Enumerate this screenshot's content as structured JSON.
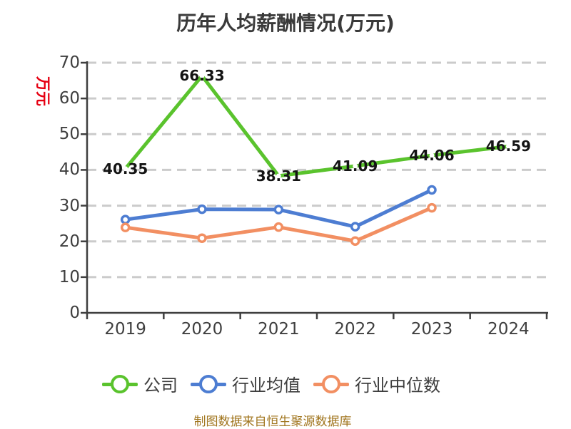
{
  "title": "历年人均薪酬情况(万元)",
  "y_axis_unit": "万元",
  "footer_note": "制图数据来自恒生聚源数据库",
  "colors": {
    "company_green": "#5ac32d",
    "industry_avg_blue": "#4d7dd2",
    "industry_median_orange": "#f28f62",
    "axis": "#3f3f3f",
    "grid": "#cbcbcb",
    "title_text": "#3a3a3a",
    "tick_text": "#3f3f3f",
    "point_label_text": "#141414",
    "y_unit_red": "#e60012",
    "footer_text": "#a1761f"
  },
  "chart_data": {
    "type": "line",
    "title": "历年人均薪酬情况(万元)",
    "categories": [
      "2019",
      "2020",
      "2021",
      "2022",
      "2023",
      "2024"
    ],
    "y_ticks": [
      0,
      10,
      20,
      30,
      40,
      50,
      60,
      70
    ],
    "ylim": [
      0,
      70
    ],
    "grid": "horizontal dashed",
    "legend_position": "bottom",
    "series": [
      {
        "key": "company",
        "name": "公司",
        "color": "#5ac32d",
        "marker": "dot",
        "values": [
          40.35,
          66.33,
          38.31,
          41.09,
          44.06,
          46.59
        ],
        "point_labels": [
          "40.35",
          "66.33",
          "38.31",
          "41.09",
          "44.06",
          "46.59"
        ]
      },
      {
        "key": "industry-average",
        "name": "行业均值",
        "color": "#4d7dd2",
        "marker": "ring",
        "values": [
          26.1,
          29.0,
          28.9,
          24.1,
          34.4,
          null
        ]
      },
      {
        "key": "industry-median",
        "name": "行业中位数",
        "color": "#f28f62",
        "marker": "ring",
        "values": [
          23.9,
          20.9,
          24.0,
          20.1,
          29.4,
          null
        ]
      }
    ]
  }
}
